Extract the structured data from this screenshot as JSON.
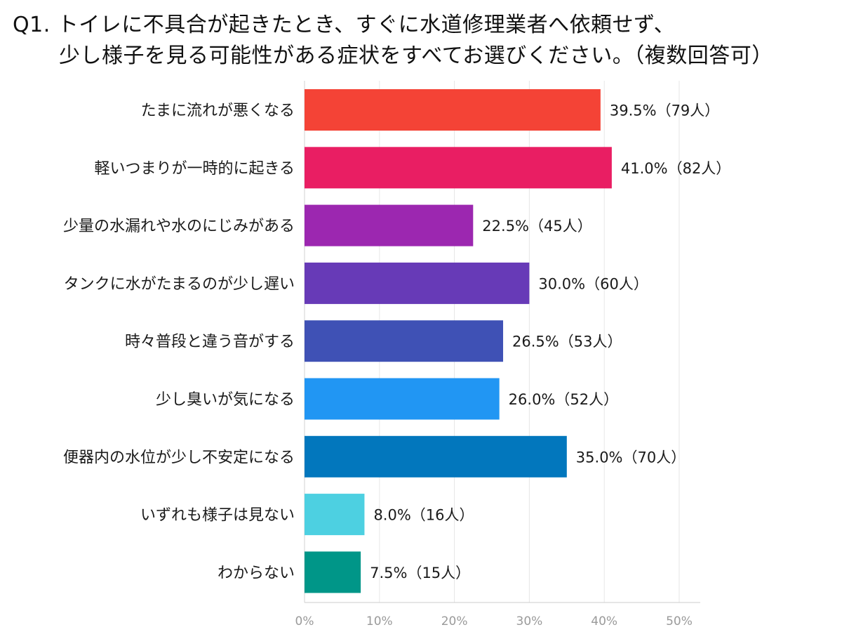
{
  "title": {
    "line1": "Q1. トイレに不具合が起きたとき、すぐに水道修理業者へ依頼せず、",
    "line2": "少し様子を見る可能性がある症状をすべてお選びください。（複数回答可）"
  },
  "chart_data": {
    "type": "bar",
    "orientation": "horizontal",
    "categories": [
      "たまに流れが悪くなる",
      "軽いつまりが一時的に起きる",
      "少量の水漏れや水のにじみがある",
      "タンクに水がたまるのが少し遅い",
      "時々普段と違う音がする",
      "少し臭いが気になる",
      "便器内の水位が少し不安定になる",
      "いずれも様子は見ない",
      "わからない"
    ],
    "values": [
      39.5,
      41.0,
      22.5,
      30.0,
      26.5,
      26.0,
      35.0,
      8.0,
      7.5
    ],
    "data_labels": [
      "39.5%（79人）",
      "41.0%（82人）",
      "22.5%（45人）",
      "30.0%（60人）",
      "26.5%（53人）",
      "26.0%（52人）",
      "35.0%（70人）",
      "8.0%（16人）",
      "7.5%（15人）"
    ],
    "colors": [
      "#f44336",
      "#e91e63",
      "#9c27b0",
      "#673ab7",
      "#3f51b5",
      "#2196f3",
      "#0277bd",
      "#4dd0e1",
      "#009688"
    ],
    "xlim": [
      0,
      50
    ],
    "x_ticks": [
      "0%",
      "10%",
      "20%",
      "30%",
      "40%",
      "50%"
    ],
    "grid": true,
    "title": "Q1. トイレに不具合が起きたとき、すぐに水道修理業者へ依頼せず、少し様子を見る可能性がある症状をすべてお選びください。（複数回答可）",
    "xlabel": "",
    "ylabel": ""
  }
}
